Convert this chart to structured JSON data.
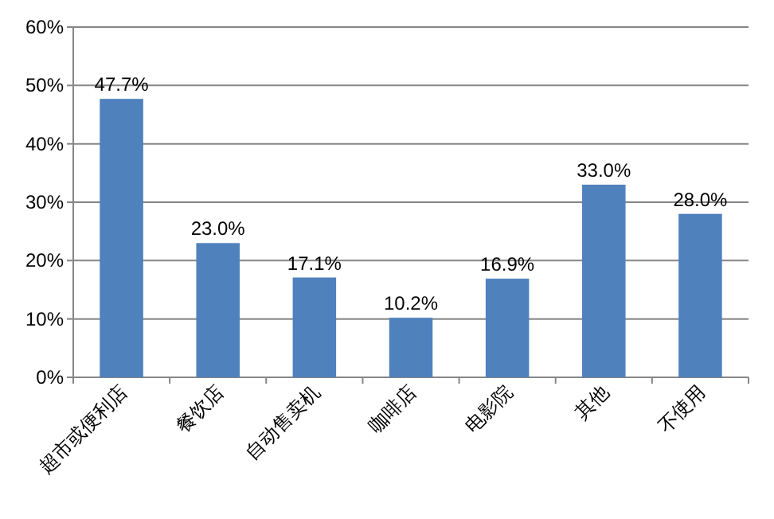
{
  "chart_data": {
    "type": "bar",
    "categories": [
      "超市或便利店",
      "餐饮店",
      "自动售卖机",
      "咖啡店",
      "电影院",
      "其他",
      "不使用"
    ],
    "values": [
      47.7,
      23.0,
      17.1,
      10.2,
      16.9,
      33.0,
      28.0
    ],
    "value_labels": [
      "47.7%",
      "23.0%",
      "17.1%",
      "10.2%",
      "16.9%",
      "33.0%",
      "28.0%"
    ],
    "color": "#4f81bd",
    "ylim": [
      0,
      60
    ],
    "yticks": [
      {
        "value": 0,
        "label": "0%"
      },
      {
        "value": 10,
        "label": "10%"
      },
      {
        "value": 20,
        "label": "20%"
      },
      {
        "value": 30,
        "label": "30%"
      },
      {
        "value": 40,
        "label": "40%"
      },
      {
        "value": 50,
        "label": "50%"
      },
      {
        "value": 60,
        "label": "60%"
      }
    ],
    "grid": "y"
  }
}
